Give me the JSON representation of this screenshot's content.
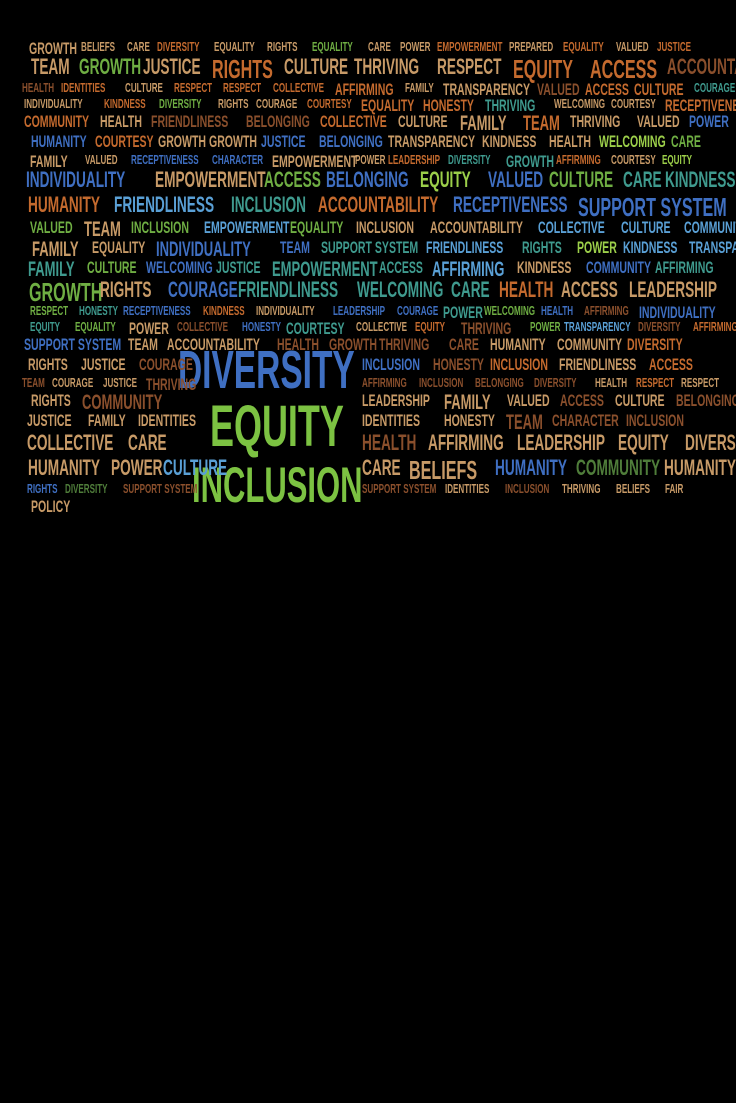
{
  "poster": {
    "background": "#000000",
    "palette": {
      "brown": "#8a4f2c",
      "tan": "#c79a67",
      "orange": "#c46a2e",
      "blue": "#3f6fc2",
      "lightblue": "#5aa0d6",
      "teal": "#3f9a8e",
      "green": "#6fae43",
      "lime": "#9ccf4a",
      "darkgreen": "#4f7d3a"
    },
    "words": [
      [
        "GROWTH",
        "tan"
      ],
      [
        "BELIEFS",
        "tan"
      ],
      [
        "CARE",
        "tan"
      ],
      [
        "DIVERSITY",
        "orange"
      ],
      [
        "EQUALITY",
        "tan"
      ],
      [
        "RIGHTS",
        "tan"
      ],
      [
        "EQUALITY",
        "green"
      ],
      [
        "CARE",
        "tan"
      ],
      [
        "POWER",
        "tan"
      ],
      [
        "EMPOWERMENT",
        "orange"
      ],
      [
        "PREPARED",
        "tan"
      ],
      [
        "EQUALITY",
        "orange"
      ],
      [
        "VALUED",
        "tan"
      ],
      [
        "JUSTICE",
        "orange"
      ],
      [
        "TEAM",
        "tan"
      ],
      [
        "GROWTH",
        "green"
      ],
      [
        "JUSTICE",
        "tan"
      ],
      [
        "RIGHTS",
        "orange"
      ],
      [
        "CULTURE",
        "tan"
      ],
      [
        "THRIVING",
        "tan"
      ],
      [
        "RESPECT",
        "tan"
      ],
      [
        "EQUITY",
        "orange"
      ],
      [
        "ACCESS",
        "orange"
      ],
      [
        "ACCOUNTABILITY",
        "brown"
      ],
      [
        "HEALTH",
        "brown"
      ],
      [
        "IDENTITIES",
        "orange"
      ],
      [
        "CULTURE",
        "tan"
      ],
      [
        "RESPECT",
        "orange"
      ],
      [
        "RESPECT",
        "orange"
      ],
      [
        "COLLECTIVE",
        "orange"
      ],
      [
        "AFFIRMING",
        "orange"
      ],
      [
        "FAMILY",
        "tan"
      ],
      [
        "TRANSPARENCY",
        "tan"
      ],
      [
        "VALUED",
        "brown"
      ],
      [
        "ACCESS",
        "orange"
      ],
      [
        "CULTURE",
        "orange"
      ],
      [
        "COURAGE",
        "teal"
      ],
      [
        "INDIVIDUALITY",
        "tan"
      ],
      [
        "KINDNESS",
        "orange"
      ],
      [
        "DIVERSITY",
        "green"
      ],
      [
        "RIGHTS",
        "tan"
      ],
      [
        "COURAGE",
        "tan"
      ],
      [
        "COURTESY",
        "orange"
      ],
      [
        "EQUALITY",
        "orange"
      ],
      [
        "HONESTY",
        "orange"
      ],
      [
        "THRIVING",
        "teal"
      ],
      [
        "WELCOMING",
        "tan"
      ],
      [
        "COURTESY",
        "tan"
      ],
      [
        "RECEPTIVENESS",
        "orange"
      ],
      [
        "COMMUNITY",
        "orange"
      ],
      [
        "HEALTH",
        "tan"
      ],
      [
        "FRIENDLINESS",
        "brown"
      ],
      [
        "BELONGING",
        "brown"
      ],
      [
        "COLLECTIVE",
        "orange"
      ],
      [
        "CULTURE",
        "tan"
      ],
      [
        "FAMILY",
        "tan"
      ],
      [
        "TEAM",
        "orange"
      ],
      [
        "THRIVING",
        "tan"
      ],
      [
        "VALUED",
        "tan"
      ],
      [
        "POWER",
        "blue"
      ],
      [
        "HUMANITY",
        "blue"
      ],
      [
        "COURTESY",
        "orange"
      ],
      [
        "GROWTH",
        "tan"
      ],
      [
        "GROWTH",
        "tan"
      ],
      [
        "JUSTICE",
        "blue"
      ],
      [
        "BELONGING",
        "blue"
      ],
      [
        "TRANSPARENCY",
        "tan"
      ],
      [
        "KINDNESS",
        "tan"
      ],
      [
        "HEALTH",
        "tan"
      ],
      [
        "WELCOMING",
        "lime"
      ],
      [
        "CARE",
        "green"
      ],
      [
        "FAMILY",
        "tan"
      ],
      [
        "VALUED",
        "tan"
      ],
      [
        "RECEPTIVENESS",
        "blue"
      ],
      [
        "CHARACTER",
        "blue"
      ],
      [
        "EMPOWERMENT",
        "tan"
      ],
      [
        "POWER",
        "tan"
      ],
      [
        "LEADERSHIP",
        "orange"
      ],
      [
        "DIVERSITY",
        "teal"
      ],
      [
        "GROWTH",
        "teal"
      ],
      [
        "AFFIRMING",
        "orange"
      ],
      [
        "COURTESY",
        "tan"
      ],
      [
        "EQUITY",
        "lime"
      ],
      [
        "INDIVIDUALITY",
        "blue"
      ],
      [
        "EMPOWERMENT",
        "tan"
      ],
      [
        "ACCESS",
        "green"
      ],
      [
        "BELONGING",
        "blue"
      ],
      [
        "EQUITY",
        "lime"
      ],
      [
        "VALUED",
        "blue"
      ],
      [
        "CULTURE",
        "green"
      ],
      [
        "CARE",
        "teal"
      ],
      [
        "KINDNESS",
        "teal"
      ],
      [
        "HUMANITY",
        "orange"
      ],
      [
        "FRIENDLINESS",
        "lightblue"
      ],
      [
        "INCLUSION",
        "teal"
      ],
      [
        "ACCOUNTABILITY",
        "orange"
      ],
      [
        "RECEPTIVENESS",
        "blue"
      ],
      [
        "SUPPORT SYSTEM",
        "blue"
      ],
      [
        "VALUED",
        "green"
      ],
      [
        "TEAM",
        "tan"
      ],
      [
        "INCLUSION",
        "green"
      ],
      [
        "EMPOWERMENT",
        "lightblue"
      ],
      [
        "EQUALITY",
        "green"
      ],
      [
        "INCLUSION",
        "tan"
      ],
      [
        "ACCOUNTABILITY",
        "tan"
      ],
      [
        "COLLECTIVE",
        "lightblue"
      ],
      [
        "CULTURE",
        "lightblue"
      ],
      [
        "COMMUNITY",
        "lightblue"
      ],
      [
        "FAMILY",
        "tan"
      ],
      [
        "EQUALITY",
        "tan"
      ],
      [
        "INDIVIDUALITY",
        "blue"
      ],
      [
        "TEAM",
        "blue"
      ],
      [
        "SUPPORT SYSTEM",
        "teal"
      ],
      [
        "FRIENDLINESS",
        "lightblue"
      ],
      [
        "RIGHTS",
        "teal"
      ],
      [
        "POWER",
        "lime"
      ],
      [
        "KINDNESS",
        "lightblue"
      ],
      [
        "TRANSPARENCY",
        "lightblue"
      ],
      [
        "FAMILY",
        "teal"
      ],
      [
        "CULTURE",
        "green"
      ],
      [
        "WELCOMING",
        "blue"
      ],
      [
        "JUSTICE",
        "teal"
      ],
      [
        "EMPOWERMENT",
        "teal"
      ],
      [
        "ACCESS",
        "teal"
      ],
      [
        "AFFIRMING",
        "lightblue"
      ],
      [
        "KINDNESS",
        "tan"
      ],
      [
        "COMMUNITY",
        "blue"
      ],
      [
        "AFFIRMING",
        "teal"
      ],
      [
        "GROWTH",
        "green"
      ],
      [
        "RIGHTS",
        "tan"
      ],
      [
        "COURAGE",
        "blue"
      ],
      [
        "FRIENDLINESS",
        "teal"
      ],
      [
        "WELCOMING",
        "teal"
      ],
      [
        "CARE",
        "teal"
      ],
      [
        "HEALTH",
        "orange"
      ],
      [
        "ACCESS",
        "tan"
      ],
      [
        "LEADERSHIP",
        "tan"
      ],
      [
        "RESPECT",
        "green"
      ],
      [
        "HONESTY",
        "teal"
      ],
      [
        "RECEPTIVENESS",
        "blue"
      ],
      [
        "KINDNESS",
        "orange"
      ],
      [
        "INDIVIDUALITY",
        "tan"
      ],
      [
        "LEADERSHIP",
        "blue"
      ],
      [
        "COURAGE",
        "blue"
      ],
      [
        "POWER",
        "teal"
      ],
      [
        "WELCOMING",
        "green"
      ],
      [
        "HEALTH",
        "blue"
      ],
      [
        "AFFIRMING",
        "brown"
      ],
      [
        "INDIVIDUALITY",
        "blue"
      ],
      [
        "EQUITY",
        "teal"
      ],
      [
        "EQUALITY",
        "green"
      ],
      [
        "POWER",
        "tan"
      ],
      [
        "COLLECTIVE",
        "brown"
      ],
      [
        "HONESTY",
        "blue"
      ],
      [
        "COURTESY",
        "teal"
      ],
      [
        "COLLECTIVE",
        "tan"
      ],
      [
        "EQUITY",
        "orange"
      ],
      [
        "THRIVING",
        "brown"
      ],
      [
        "POWER",
        "green"
      ],
      [
        "TRANSPARENCY",
        "lightblue"
      ],
      [
        "DIVERSITY",
        "brown"
      ],
      [
        "AFFIRMING",
        "orange"
      ],
      [
        "SUPPORT SYSTEM",
        "blue"
      ],
      [
        "TEAM",
        "tan"
      ],
      [
        "ACCOUNTABILITY",
        "tan"
      ],
      [
        "HEALTH",
        "brown"
      ],
      [
        "GROWTH",
        "brown"
      ],
      [
        "THRIVING",
        "brown"
      ],
      [
        "CARE",
        "brown"
      ],
      [
        "HUMANITY",
        "tan"
      ],
      [
        "COMMUNITY",
        "tan"
      ],
      [
        "DIVERSITY",
        "orange"
      ],
      [
        "RIGHTS",
        "tan"
      ],
      [
        "JUSTICE",
        "tan"
      ],
      [
        "COURAGE",
        "brown"
      ],
      [
        "INCLUSION",
        "blue"
      ],
      [
        "HONESTY",
        "brown"
      ],
      [
        "INCLUSION",
        "orange"
      ],
      [
        "FRIENDLINESS",
        "tan"
      ],
      [
        "ACCESS",
        "orange"
      ],
      [
        "TEAM",
        "brown"
      ],
      [
        "COURAGE",
        "tan"
      ],
      [
        "JUSTICE",
        "tan"
      ],
      [
        "THRIVING",
        "brown"
      ],
      [
        "AFFIRMING",
        "brown"
      ],
      [
        "INCLUSION",
        "brown"
      ],
      [
        "BELONGING",
        "brown"
      ],
      [
        "DIVERSITY",
        "brown"
      ],
      [
        "HEALTH",
        "tan"
      ],
      [
        "RESPECT",
        "orange"
      ],
      [
        "RESPECT",
        "tan"
      ],
      [
        "RIGHTS",
        "tan"
      ],
      [
        "COMMUNITY",
        "brown"
      ],
      [
        "LEADERSHIP",
        "tan"
      ],
      [
        "FAMILY",
        "tan"
      ],
      [
        "VALUED",
        "tan"
      ],
      [
        "ACCESS",
        "brown"
      ],
      [
        "CULTURE",
        "tan"
      ],
      [
        "BELONGING",
        "brown"
      ],
      [
        "JUSTICE",
        "tan"
      ],
      [
        "FAMILY",
        "tan"
      ],
      [
        "IDENTITIES",
        "tan"
      ],
      [
        "IDENTITIES",
        "tan"
      ],
      [
        "HONESTY",
        "tan"
      ],
      [
        "TEAM",
        "brown"
      ],
      [
        "CHARACTER",
        "brown"
      ],
      [
        "INCLUSION",
        "brown"
      ],
      [
        "COLLECTIVE",
        "tan"
      ],
      [
        "CARE",
        "tan"
      ],
      [
        "HEALTH",
        "brown"
      ],
      [
        "AFFIRMING",
        "tan"
      ],
      [
        "LEADERSHIP",
        "tan"
      ],
      [
        "EQUITY",
        "tan"
      ],
      [
        "DIVERSITY",
        "tan"
      ],
      [
        "HUMANITY",
        "tan"
      ],
      [
        "POWER",
        "tan"
      ],
      [
        "CULTURE",
        "lightblue"
      ],
      [
        "CARE",
        "tan"
      ],
      [
        "BELIEFS",
        "tan"
      ],
      [
        "HUMANITY",
        "blue"
      ],
      [
        "COMMUNITY",
        "darkgreen"
      ],
      [
        "HUMANITY",
        "tan"
      ],
      [
        "RIGHTS",
        "blue"
      ],
      [
        "DIVERSITY",
        "darkgreen"
      ],
      [
        "SUPPORT SYSTEM",
        "brown"
      ],
      [
        "SUPPORT SYSTEM",
        "brown"
      ],
      [
        "IDENTITIES",
        "tan"
      ],
      [
        "INCLUSION",
        "brown"
      ],
      [
        "THRIVING",
        "tan"
      ],
      [
        "BELIEFS",
        "tan"
      ],
      [
        "FAIR",
        "tan"
      ],
      [
        "POLICY",
        "tan"
      ]
    ],
    "headline": {
      "line1": "DIVERSITY",
      "line2": "EQUITY",
      "line3": "INCLUSION",
      "color1": "#3f6fc2",
      "color2": "#7cc242",
      "color3": "#7cc242"
    }
  }
}
